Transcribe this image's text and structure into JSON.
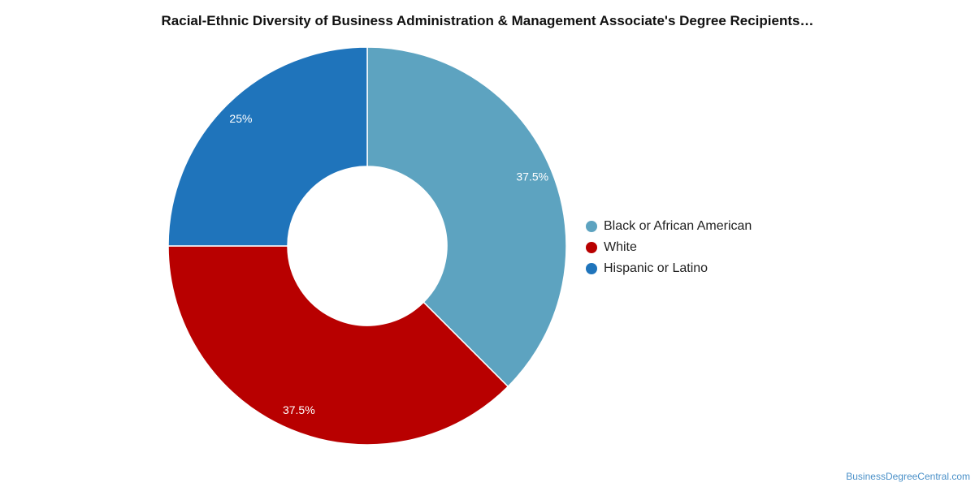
{
  "chart_data": {
    "type": "pie",
    "variant": "donut",
    "title": "Racial-Ethnic Diversity of Business Administration & Management Associate's Degree Recipients…",
    "slices": [
      {
        "label": "Black or African American",
        "value": 37.5,
        "display": "37.5%",
        "color": "#5da3c0"
      },
      {
        "label": "White",
        "value": 37.5,
        "display": "37.5%",
        "color": "#b80000"
      },
      {
        "label": "Hispanic or Latino",
        "value": 25,
        "display": "25%",
        "color": "#1f74bb"
      }
    ],
    "start_angle": "12 o'clock",
    "direction": "clockwise",
    "legend_position": "right"
  },
  "watermark": "BusinessDegreeCentral.com"
}
